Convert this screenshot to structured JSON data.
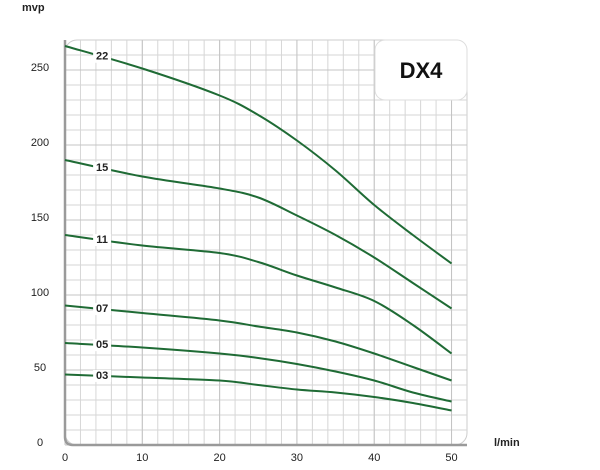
{
  "chart_data": {
    "type": "line",
    "title": "DX4",
    "y_label": "mvp",
    "x_label": "l/min",
    "x": [
      0,
      10,
      20,
      25,
      30,
      35,
      40,
      45,
      50
    ],
    "series": [
      {
        "name": "22",
        "color": "#1f6b35",
        "values": [
          266,
          251,
          233,
          220,
          203,
          183,
          160,
          140,
          121
        ]
      },
      {
        "name": "15",
        "color": "#1f6b35",
        "values": [
          190,
          179,
          171,
          165,
          153,
          140,
          125,
          108,
          91
        ]
      },
      {
        "name": "11",
        "color": "#1f6b35",
        "values": [
          140,
          133,
          128,
          122,
          113,
          105,
          96,
          80,
          61
        ]
      },
      {
        "name": "07",
        "color": "#1f6b35",
        "values": [
          93,
          88,
          83,
          79,
          75,
          69,
          61,
          52,
          43
        ]
      },
      {
        "name": "05",
        "color": "#1f6b35",
        "values": [
          68,
          65,
          61,
          58,
          54,
          49,
          43,
          35,
          29
        ]
      },
      {
        "name": "03",
        "color": "#1f6b35",
        "values": [
          47,
          45,
          43,
          40,
          37,
          35,
          32,
          28,
          23
        ]
      }
    ],
    "xlim": [
      0,
      52
    ],
    "xticks": [
      0,
      10,
      20,
      30,
      40,
      50
    ],
    "ylim": [
      0,
      270
    ],
    "yticks": [
      0,
      50,
      100,
      150,
      200,
      250
    ],
    "grid": true
  }
}
